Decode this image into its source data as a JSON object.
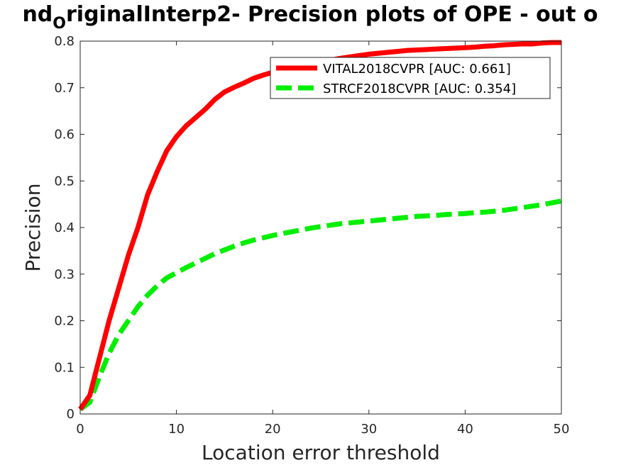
{
  "chart_data": {
    "type": "line",
    "title_parts": [
      "nd",
      "O",
      "riginalInterp2- Precision plots of OPE - out o"
    ],
    "xlabel": "Location error threshold",
    "ylabel": "Precision",
    "xlim": [
      0,
      50
    ],
    "ylim": [
      0,
      0.8
    ],
    "xticks": [
      0,
      10,
      20,
      30,
      40,
      50
    ],
    "yticks": [
      0,
      0.1,
      0.2,
      0.3,
      0.4,
      0.5,
      0.6,
      0.7,
      0.8
    ],
    "grid": false,
    "legend_position": "top-right",
    "series": [
      {
        "name": "VITAL2018CVPR [AUC: 0.661]",
        "color": "#ff0000",
        "style": "solid",
        "x": [
          0,
          1,
          2,
          3,
          4,
          5,
          6,
          7,
          8,
          9,
          10,
          11,
          12,
          13,
          14,
          15,
          16,
          17,
          18,
          19,
          20,
          21,
          22,
          23,
          24,
          25,
          26,
          27,
          28,
          29,
          30,
          31,
          32,
          33,
          34,
          35,
          36,
          37,
          38,
          39,
          40,
          41,
          42,
          43,
          44,
          45,
          46,
          47,
          48,
          49,
          50
        ],
        "y": [
          0.01,
          0.04,
          0.12,
          0.2,
          0.27,
          0.34,
          0.4,
          0.47,
          0.52,
          0.565,
          0.595,
          0.618,
          0.636,
          0.654,
          0.675,
          0.691,
          0.701,
          0.71,
          0.72,
          0.727,
          0.733,
          0.738,
          0.743,
          0.747,
          0.751,
          0.755,
          0.759,
          0.763,
          0.766,
          0.769,
          0.772,
          0.774,
          0.776,
          0.778,
          0.78,
          0.781,
          0.782,
          0.783,
          0.784,
          0.785,
          0.786,
          0.787,
          0.789,
          0.79,
          0.792,
          0.793,
          0.794,
          0.794,
          0.796,
          0.797,
          0.797
        ]
      },
      {
        "name": "STRCF2018CVPR [AUC: 0.354]",
        "color": "#00ee00",
        "style": "dashed",
        "x": [
          0,
          1,
          2,
          3,
          4,
          5,
          6,
          7,
          8,
          9,
          10,
          11,
          12,
          13,
          14,
          15,
          16,
          17,
          18,
          19,
          20,
          21,
          22,
          23,
          24,
          25,
          26,
          27,
          28,
          29,
          30,
          31,
          32,
          33,
          34,
          35,
          36,
          37,
          38,
          39,
          40,
          41,
          42,
          43,
          44,
          45,
          46,
          47,
          48,
          49,
          50
        ],
        "y": [
          0.01,
          0.025,
          0.08,
          0.13,
          0.17,
          0.2,
          0.23,
          0.255,
          0.275,
          0.292,
          0.303,
          0.314,
          0.324,
          0.334,
          0.344,
          0.352,
          0.36,
          0.367,
          0.373,
          0.378,
          0.383,
          0.387,
          0.391,
          0.395,
          0.399,
          0.402,
          0.405,
          0.408,
          0.41,
          0.412,
          0.414,
          0.416,
          0.418,
          0.42,
          0.422,
          0.424,
          0.425,
          0.426,
          0.428,
          0.429,
          0.43,
          0.432,
          0.433,
          0.435,
          0.437,
          0.44,
          0.443,
          0.446,
          0.449,
          0.453,
          0.457
        ]
      }
    ]
  }
}
